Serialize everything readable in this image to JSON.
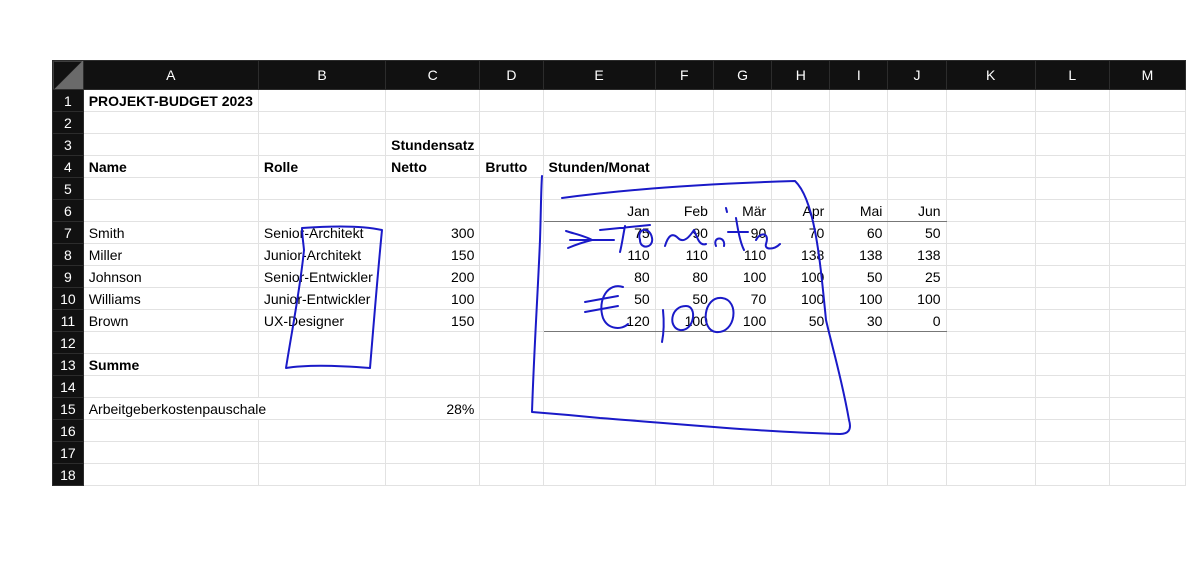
{
  "columns": [
    "A",
    "B",
    "C",
    "D",
    "E",
    "F",
    "G",
    "H",
    "I",
    "J",
    "K",
    "L",
    "M"
  ],
  "rows": [
    "1",
    "2",
    "3",
    "4",
    "5",
    "6",
    "7",
    "8",
    "9",
    "10",
    "11",
    "12",
    "13",
    "14",
    "15",
    "16",
    "17",
    "18"
  ],
  "title": "PROJEKT-BUDGET 2023",
  "labels": {
    "stundensatz": "Stundensatz",
    "name": "Name",
    "rolle": "Rolle",
    "netto": "Netto",
    "brutto": "Brutto",
    "stunden_monat": "Stunden/Monat",
    "summe": "Summe",
    "pauschale_label": "Arbeitgeberkostenpauschale",
    "pauschale_value": "28%"
  },
  "months": [
    "Jan",
    "Feb",
    "Mär",
    "Apr",
    "Mai",
    "Jun"
  ],
  "staff": [
    {
      "name": "Smith",
      "role": "Senior-Architekt",
      "netto": "300",
      "hours": [
        "75",
        "90",
        "90",
        "70",
        "60",
        "50"
      ]
    },
    {
      "name": "Miller",
      "role": "Junior-Architekt",
      "netto": "150",
      "hours": [
        "110",
        "110",
        "110",
        "138",
        "138",
        "138"
      ]
    },
    {
      "name": "Johnson",
      "role": "Senior-Entwickler",
      "netto": "200",
      "hours": [
        "80",
        "80",
        "100",
        "100",
        "50",
        "25"
      ]
    },
    {
      "name": "Williams",
      "role": "Junior-Entwickler",
      "netto": "100",
      "hours": [
        "50",
        "50",
        "70",
        "100",
        "100",
        "100"
      ]
    },
    {
      "name": "Brown",
      "role": "UX-Designer",
      "netto": "150",
      "hours": [
        "120",
        "100",
        "100",
        "50",
        "30",
        "0"
      ]
    }
  ],
  "ink_color": "#1a1ac8"
}
